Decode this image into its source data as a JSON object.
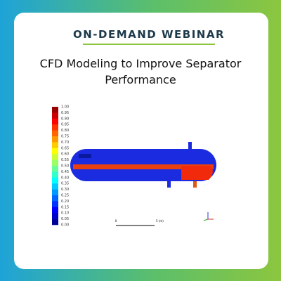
{
  "header": {
    "title": "ON-DEMAND WEBINAR",
    "subtitle": [
      "CFD Modeling to Improve Separator",
      "Performance"
    ]
  },
  "colorbar": {
    "labels": [
      "1.00",
      "0.95",
      "0.90",
      "0.85",
      "0.80",
      "0.75",
      "0.70",
      "0.65",
      "0.60",
      "0.55",
      "0.50",
      "0.45",
      "0.40",
      "0.35",
      "0.30",
      "0.25",
      "0.20",
      "0.15",
      "0.10",
      "0.05",
      "0.00"
    ]
  },
  "scale": {
    "start": "0",
    "end": "5 (m)"
  }
}
